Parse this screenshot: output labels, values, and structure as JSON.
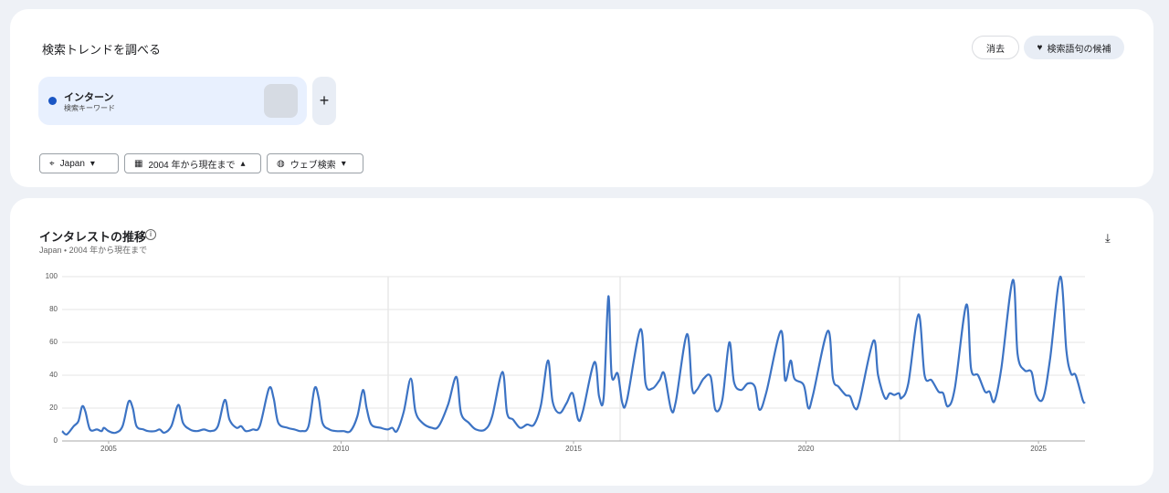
{
  "header": {
    "title": "検索トレンドを調べる",
    "clear": "消去",
    "suggest": "検索語句の候補"
  },
  "term": {
    "name": "インターン",
    "kind": "検索キーワード"
  },
  "filters": {
    "region": "Japan",
    "period": "2004 年から現在まで",
    "source": "ウェブ検索"
  },
  "chart_data": {
    "type": "line",
    "title": "インタレストの推移",
    "subtitle": "Japan ・ 2004 年から現在まで",
    "x": [
      2004.0,
      2004.1,
      2004.25,
      2004.35,
      2004.43,
      2004.5,
      2004.6,
      2004.75,
      2004.85,
      2004.9,
      2005.0,
      2005.15,
      2005.3,
      2005.43,
      2005.52,
      2005.6,
      2005.75,
      2005.85,
      2006.0,
      2006.1,
      2006.2,
      2006.35,
      2006.5,
      2006.6,
      2006.75,
      2006.9,
      2007.05,
      2007.2,
      2007.35,
      2007.5,
      2007.6,
      2007.75,
      2007.85,
      2007.95,
      2008.1,
      2008.25,
      2008.45,
      2008.55,
      2008.65,
      2008.85,
      2009.0,
      2009.15,
      2009.3,
      2009.43,
      2009.52,
      2009.6,
      2009.75,
      2009.9,
      2010.05,
      2010.2,
      2010.35,
      2010.47,
      2010.55,
      2010.65,
      2010.85,
      2011.0,
      2011.1,
      2011.2,
      2011.35,
      2011.5,
      2011.6,
      2011.75,
      2011.95,
      2012.1,
      2012.3,
      2012.48,
      2012.58,
      2012.75,
      2012.9,
      2013.1,
      2013.25,
      2013.47,
      2013.57,
      2013.7,
      2013.85,
      2014.0,
      2014.15,
      2014.3,
      2014.45,
      2014.55,
      2014.7,
      2014.85,
      2014.98,
      2015.1,
      2015.2,
      2015.45,
      2015.55,
      2015.65,
      2015.75,
      2015.82,
      2015.95,
      2016.05,
      2016.15,
      2016.44,
      2016.55,
      2016.7,
      2016.85,
      2016.95,
      2017.1,
      2017.2,
      2017.44,
      2017.55,
      2017.65,
      2017.8,
      2017.95,
      2018.05,
      2018.2,
      2018.35,
      2018.45,
      2018.6,
      2018.75,
      2018.9,
      2019.0,
      2019.15,
      2019.46,
      2019.55,
      2019.67,
      2019.75,
      2019.95,
      2020.05,
      2020.15,
      2020.47,
      2020.58,
      2020.7,
      2020.85,
      2020.95,
      2021.05,
      2021.15,
      2021.45,
      2021.55,
      2021.7,
      2021.8,
      2021.9,
      2022.0,
      2022.05,
      2022.2,
      2022.42,
      2022.55,
      2022.7,
      2022.85,
      2022.95,
      2023.05,
      2023.2,
      2023.45,
      2023.55,
      2023.7,
      2023.85,
      2023.95,
      2024.05,
      2024.2,
      2024.45,
      2024.55,
      2024.7,
      2024.85,
      2024.95,
      2025.1,
      2025.25,
      2025.47,
      2025.6,
      2025.7,
      2025.8,
      2025.95,
      2026.0
    ],
    "series": [
      {
        "name": "インターン",
        "color": "#3c73c4",
        "values": [
          6,
          4,
          9,
          12,
          21,
          18,
          7,
          7,
          6,
          8,
          6,
          5,
          9,
          24,
          20,
          9,
          7,
          6,
          6,
          7,
          5,
          9,
          22,
          11,
          7,
          6,
          7,
          6,
          9,
          25,
          13,
          8,
          9,
          6,
          7,
          9,
          32,
          26,
          11,
          8,
          7,
          6,
          9,
          32,
          26,
          11,
          7,
          6,
          6,
          6,
          15,
          31,
          20,
          10,
          8,
          7,
          8,
          6,
          18,
          38,
          18,
          11,
          8,
          9,
          22,
          39,
          17,
          11,
          7,
          7,
          15,
          42,
          17,
          13,
          8,
          10,
          10,
          22,
          49,
          24,
          17,
          23,
          29,
          13,
          18,
          48,
          27,
          27,
          88,
          40,
          41,
          23,
          25,
          68,
          35,
          32,
          37,
          41,
          19,
          24,
          65,
          32,
          31,
          38,
          39,
          19,
          25,
          60,
          36,
          31,
          35,
          33,
          19,
          30,
          67,
          37,
          49,
          38,
          34,
          20,
          28,
          67,
          38,
          33,
          28,
          27,
          20,
          24,
          61,
          40,
          26,
          29,
          28,
          29,
          26,
          35,
          77,
          40,
          37,
          30,
          29,
          21,
          32,
          83,
          44,
          40,
          30,
          30,
          24,
          44,
          98,
          53,
          43,
          42,
          28,
          26,
          50,
          100,
          55,
          41,
          40,
          25,
          23
        ]
      }
    ],
    "xlim": [
      2004,
      2026
    ],
    "xticks": [
      2005,
      2010,
      2015,
      2020,
      2025
    ],
    "ylim": [
      0,
      100
    ],
    "yticks": [
      0,
      20,
      40,
      60,
      80,
      100
    ],
    "grid": true
  }
}
